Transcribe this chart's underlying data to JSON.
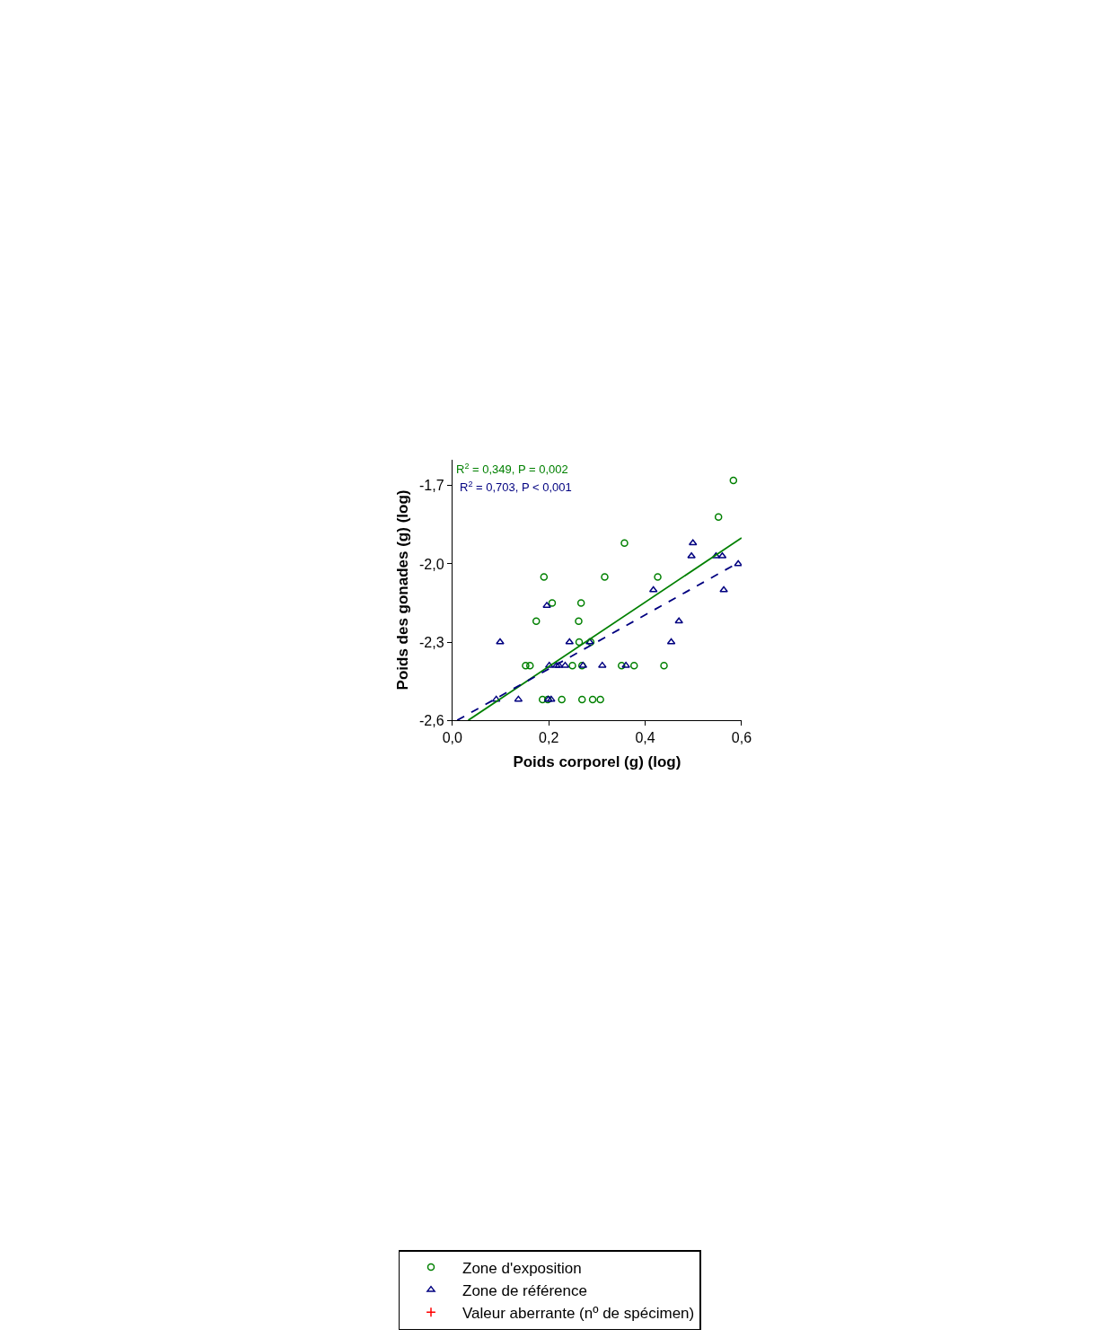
{
  "chart_data": {
    "type": "scatter",
    "xlabel": "Poids corporel (g) (log)",
    "ylabel": "Poids des gonades (g) (log)",
    "xlim": [
      0,
      0.6
    ],
    "ylim": [
      -2.6,
      -1.6
    ],
    "xticks": [
      {
        "value": 0,
        "label": "0,0"
      },
      {
        "value": 0.2,
        "label": "0,2"
      },
      {
        "value": 0.4,
        "label": "0,4"
      },
      {
        "value": 0.6,
        "label": "0,6"
      }
    ],
    "yticks": [
      {
        "value": -2.6,
        "label": "-2,6"
      },
      {
        "value": -2.3,
        "label": "-2,3"
      },
      {
        "value": -2.0,
        "label": "-2,0"
      },
      {
        "value": -1.7,
        "label": "-1,7"
      }
    ],
    "legend": "bottom",
    "annotations": [
      "R$^{2}$ = 0,349, P = 0,002",
      "R$^{2}$ = 0,703, P < 0,001"
    ],
    "series": [
      {
        "name": "Zone d'exposition",
        "marker": "circle",
        "color": "#008000",
        "x": [
          0.19,
          0.174,
          0.207,
          0.262,
          0.267,
          0.316,
          0.357,
          0.426,
          0.552,
          0.583,
          0.263,
          0.287,
          0.152,
          0.161,
          0.249,
          0.269,
          0.351,
          0.377,
          0.439,
          0.187,
          0.198,
          0.227,
          0.269,
          0.291,
          0.307
        ],
        "values": [
          -2.05,
          -2.22,
          -2.15,
          -2.22,
          -2.15,
          -2.05,
          -1.92,
          -2.05,
          -1.82,
          -1.68,
          -2.3,
          -2.3,
          -2.39,
          -2.39,
          -2.39,
          -2.39,
          -2.39,
          -2.39,
          -2.39,
          -2.52,
          -2.52,
          -2.52,
          -2.52,
          -2.52,
          -2.52
        ]
      },
      {
        "name": "Zone de référence",
        "marker": "triangle",
        "color": "#000080",
        "x": [
          0.091,
          0.099,
          0.137,
          0.196,
          0.201,
          0.199,
          0.205,
          0.216,
          0.221,
          0.234,
          0.243,
          0.271,
          0.285,
          0.311,
          0.36,
          0.417,
          0.454,
          0.47,
          0.496,
          0.499,
          0.547,
          0.56,
          0.563,
          0.593
        ],
        "values": [
          -2.52,
          -2.3,
          -2.52,
          -2.16,
          -2.39,
          -2.52,
          -2.52,
          -2.39,
          -2.39,
          -2.39,
          -2.3,
          -2.39,
          -2.3,
          -2.39,
          -2.39,
          -2.1,
          -2.3,
          -2.22,
          -1.97,
          -1.92,
          -1.97,
          -1.97,
          -2.1,
          -2.0
        ]
      },
      {
        "name": "Valeur aberrante (nº de spécimen)",
        "marker": "cross",
        "color": "#ff0000"
      },
      {
        "type": "line",
        "line_style": "solid",
        "color": "#008000",
        "x": [
          0.033,
          0.6
        ],
        "values": [
          -2.6,
          -1.9
        ]
      },
      {
        "type": "line",
        "line_style": "dashed",
        "color": "#000080",
        "x": [
          0.01,
          0.582
        ],
        "values": [
          -2.6,
          -2.007
        ]
      }
    ]
  }
}
